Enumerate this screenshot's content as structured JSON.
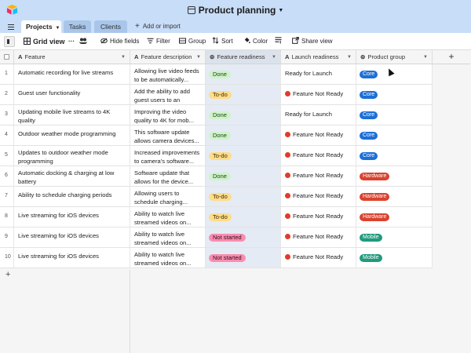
{
  "app": {
    "base_title": "Product planning"
  },
  "tabs": [
    {
      "label": "Projects"
    },
    {
      "label": "Tasks"
    },
    {
      "label": "Clients"
    }
  ],
  "add_import_label": "Add or import",
  "toolbar": {
    "view_name": "Grid view",
    "more": "···",
    "hide_fields": "Hide fields",
    "filter": "Filter",
    "group": "Group",
    "sort": "Sort",
    "color": "Color",
    "share": "Share view"
  },
  "columns": [
    {
      "label": "Feature",
      "type_icon": "A"
    },
    {
      "label": "Feature description",
      "type_icon": "A"
    },
    {
      "label": "Feature readiness",
      "type_icon": "single-select-icon"
    },
    {
      "label": "Launch readiness",
      "type_icon": "A"
    },
    {
      "label": "Product group",
      "type_icon": "single-select-icon"
    }
  ],
  "status_colors": {
    "Done": "#cff3c9",
    "To-do": "#ffdc8a",
    "Not started": "#f88db0"
  },
  "group_colors": {
    "Core": "#1d6fd6",
    "Hardware": "#d9422e",
    "Mobile": "#1f9a7d"
  },
  "rows": [
    {
      "num": "1",
      "feature": "Automatic recording for live streams",
      "desc": "Allowing live video feeds to be automatically...",
      "readiness": "Done",
      "launch": "Ready for Launch",
      "launch_dot": false,
      "group": "Core"
    },
    {
      "num": "2",
      "feature": "Guest user functionality",
      "desc": "Add the ability to add guest users to an account",
      "readiness": "To-do",
      "launch": "Feature Not Ready",
      "launch_dot": true,
      "group": "Core"
    },
    {
      "num": "3",
      "feature": "Updating mobile live streams to 4K quality",
      "desc": "Improving the video quality to 4K for mob...",
      "readiness": "Done",
      "launch": "Ready for Launch",
      "launch_dot": false,
      "group": "Core"
    },
    {
      "num": "4",
      "feature": "Outdoor weather mode programming",
      "desc": "This software update allows camera devices...",
      "readiness": "Done",
      "launch": "Feature Not Ready",
      "launch_dot": true,
      "group": "Core"
    },
    {
      "num": "5",
      "feature": "Updates to outdoor weather mode programming",
      "desc": "Increased improvements to camera's software...",
      "readiness": "To-do",
      "launch": "Feature Not Ready",
      "launch_dot": true,
      "group": "Core"
    },
    {
      "num": "6",
      "feature": "Automatic docking & charging at low battery",
      "desc": "Software update that allows for the device...",
      "readiness": "Done",
      "launch": "Feature Not Ready",
      "launch_dot": true,
      "group": "Hardware"
    },
    {
      "num": "7",
      "feature": "Ability to schedule charging periods",
      "desc": "Allowing users to schedule charging...",
      "readiness": "To-do",
      "launch": "Feature Not Ready",
      "launch_dot": true,
      "group": "Hardware"
    },
    {
      "num": "8",
      "feature": "Live streaming for iOS devices",
      "desc": "Ability to watch live streamed videos on...",
      "readiness": "To-do",
      "launch": "Feature Not Ready",
      "launch_dot": true,
      "group": "Hardware"
    },
    {
      "num": "9",
      "feature": "Live streaming for iOS devices",
      "desc": "Ability to watch live streamed videos on...",
      "readiness": "Not started",
      "launch": "Feature Not Ready",
      "launch_dot": true,
      "group": "Mobile"
    },
    {
      "num": "10",
      "feature": "Live streaming for iOS devices",
      "desc": "Ability to watch live streamed videos on...",
      "readiness": "Not started",
      "launch": "Feature Not Ready",
      "launch_dot": true,
      "group": "Mobile"
    }
  ],
  "add_row_label": "+",
  "add_field_label": "+"
}
